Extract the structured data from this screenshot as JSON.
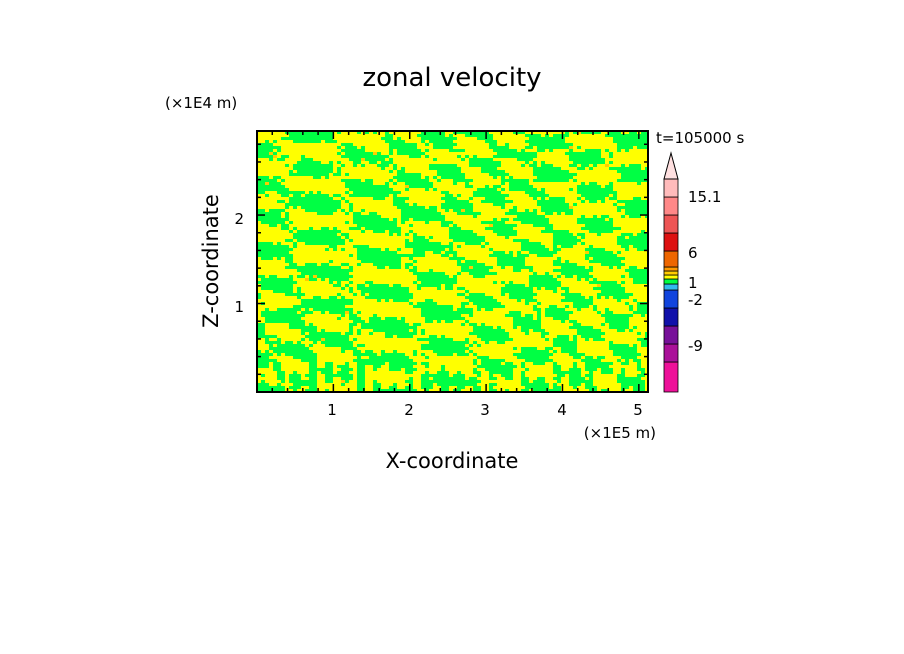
{
  "chart_data": {
    "type": "heatmap",
    "title": "zonal velocity",
    "xlabel": "X-coordinate",
    "ylabel": "Z-coordinate",
    "x_multiplier": "(×1E5 m)",
    "y_multiplier": "(×1E4 m)",
    "time_label": "t=105000 s",
    "xlim": [
      0,
      5.12
    ],
    "ylim": [
      0,
      2.95
    ],
    "x_ticks": [
      "1",
      "2",
      "3",
      "4",
      "5"
    ],
    "y_ticks": [
      "1",
      "2"
    ],
    "colorbar": {
      "labels": [
        "15.1",
        "6",
        "1",
        "-2",
        "-9"
      ],
      "colors": [
        "#ee1199",
        "#aa1199",
        "#771199",
        "#1111aa",
        "#1144dd",
        "#33bbee",
        "#00ff44",
        "#ffff00",
        "#ffcc00",
        "#ff9900",
        "#ee6600",
        "#dd1111",
        "#ee5555",
        "#ff8888",
        "#ffbbbb"
      ],
      "extend_max": true
    },
    "field_colors": {
      "dominant": [
        "#00ff44",
        "#ffff00"
      ],
      "rare": "#ffcc00"
    },
    "pattern_description": "alternating small positive/negative zonal velocity streaks, yellow and green"
  }
}
